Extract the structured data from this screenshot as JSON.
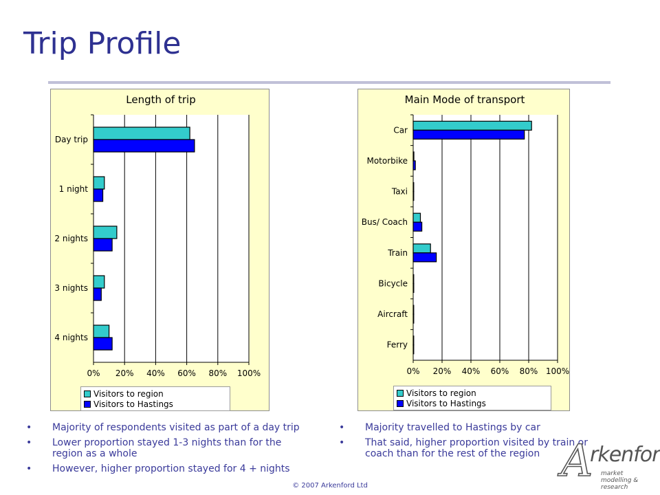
{
  "slide": {
    "title": "Trip Profile",
    "copyright": "© 2007 Arkenford Ltd"
  },
  "logo": {
    "letter": "A",
    "word": "rkenford",
    "tagline": "market modelling & research"
  },
  "colors": {
    "title": "#2e3191",
    "panel_bg": "#ffffcc",
    "visitors_to_region": "#33cccc",
    "visitors_to_hastings": "#0000ff",
    "bullet_text": "#3a3a9a"
  },
  "chart_data": [
    {
      "type": "bar",
      "orientation": "horizontal",
      "title": "Length of trip",
      "categories": [
        "Day trip",
        "1 night",
        "2 nights",
        "3 nights",
        "4 nights"
      ],
      "series": [
        {
          "name": "Visitors to region",
          "values": [
            62,
            7,
            15,
            7,
            10
          ]
        },
        {
          "name": "Visitors to Hastings",
          "values": [
            65,
            6,
            12,
            5,
            12
          ]
        }
      ],
      "xlim": [
        0,
        100
      ],
      "x_ticks": [
        "0%",
        "20%",
        "40%",
        "60%",
        "80%",
        "100%"
      ],
      "grid": true,
      "legend_position": "bottom"
    },
    {
      "type": "bar",
      "orientation": "horizontal",
      "title": "Main Mode of transport",
      "categories": [
        "Car",
        "Motorbike",
        "Taxi",
        "Bus/ Coach",
        "Train",
        "Bicycle",
        "Aircraft",
        "Ferry"
      ],
      "series": [
        {
          "name": "Visitors to region",
          "values": [
            82,
            0.5,
            0.2,
            5,
            12,
            0.3,
            0,
            0
          ]
        },
        {
          "name": "Visitors to Hastings",
          "values": [
            77,
            1.5,
            0.3,
            6,
            16,
            0.4,
            0,
            0
          ]
        }
      ],
      "xlim": [
        0,
        100
      ],
      "x_ticks": [
        "0%",
        "20%",
        "40%",
        "60%",
        "80%",
        "100%"
      ],
      "grid": true,
      "legend_position": "bottom"
    }
  ],
  "left_bullets": [
    "Majority of respondents visited as part of a day trip",
    "Lower proportion stayed 1-3 nights than for the region as a whole",
    "However, higher proportion stayed for 4 + nights"
  ],
  "right_bullets": [
    "Majority travelled to Hastings by car",
    "That said, higher proportion visited by train or coach than for the rest of the region"
  ]
}
